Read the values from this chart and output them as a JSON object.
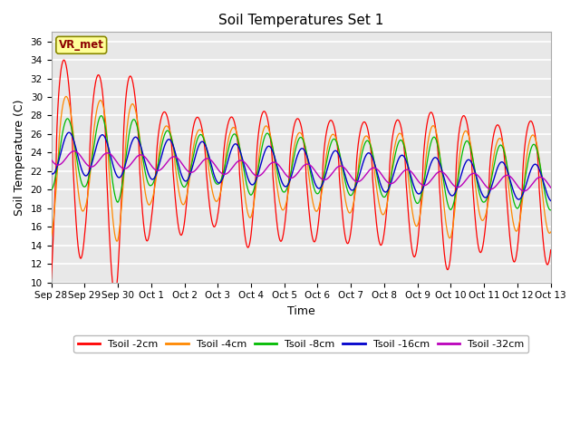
{
  "title": "Soil Temperatures Set 1",
  "xlabel": "Time",
  "ylabel": "Soil Temperature (C)",
  "ylim": [
    10,
    37
  ],
  "yticks": [
    10,
    12,
    14,
    16,
    18,
    20,
    22,
    24,
    26,
    28,
    30,
    32,
    34,
    36
  ],
  "annotation_text": "VR_met",
  "annotation_color": "#8B0000",
  "annotation_bg": "#FFFF99",
  "line_colors": [
    "#FF0000",
    "#FF8800",
    "#00BB00",
    "#0000CC",
    "#BB00BB"
  ],
  "legend_labels": [
    "Tsoil -2cm",
    "Tsoil -4cm",
    "Tsoil -8cm",
    "Tsoil -16cm",
    "Tsoil -32cm"
  ],
  "fig_bg": "#FFFFFF",
  "plot_bg": "#E8E8E8",
  "grid_color": "#FFFFFF",
  "n_days": 15,
  "n_per_day": 144,
  "x_tick_labels": [
    "Sep 28",
    "Sep 29",
    "Sep 30",
    "Oct 1",
    "Oct 2",
    "Oct 3",
    "Oct 4",
    "Oct 5",
    "Oct 6",
    "Oct 7",
    "Oct 8",
    "Oct 9",
    "Oct 10",
    "Oct 11",
    "Oct 12",
    "Oct 13"
  ]
}
